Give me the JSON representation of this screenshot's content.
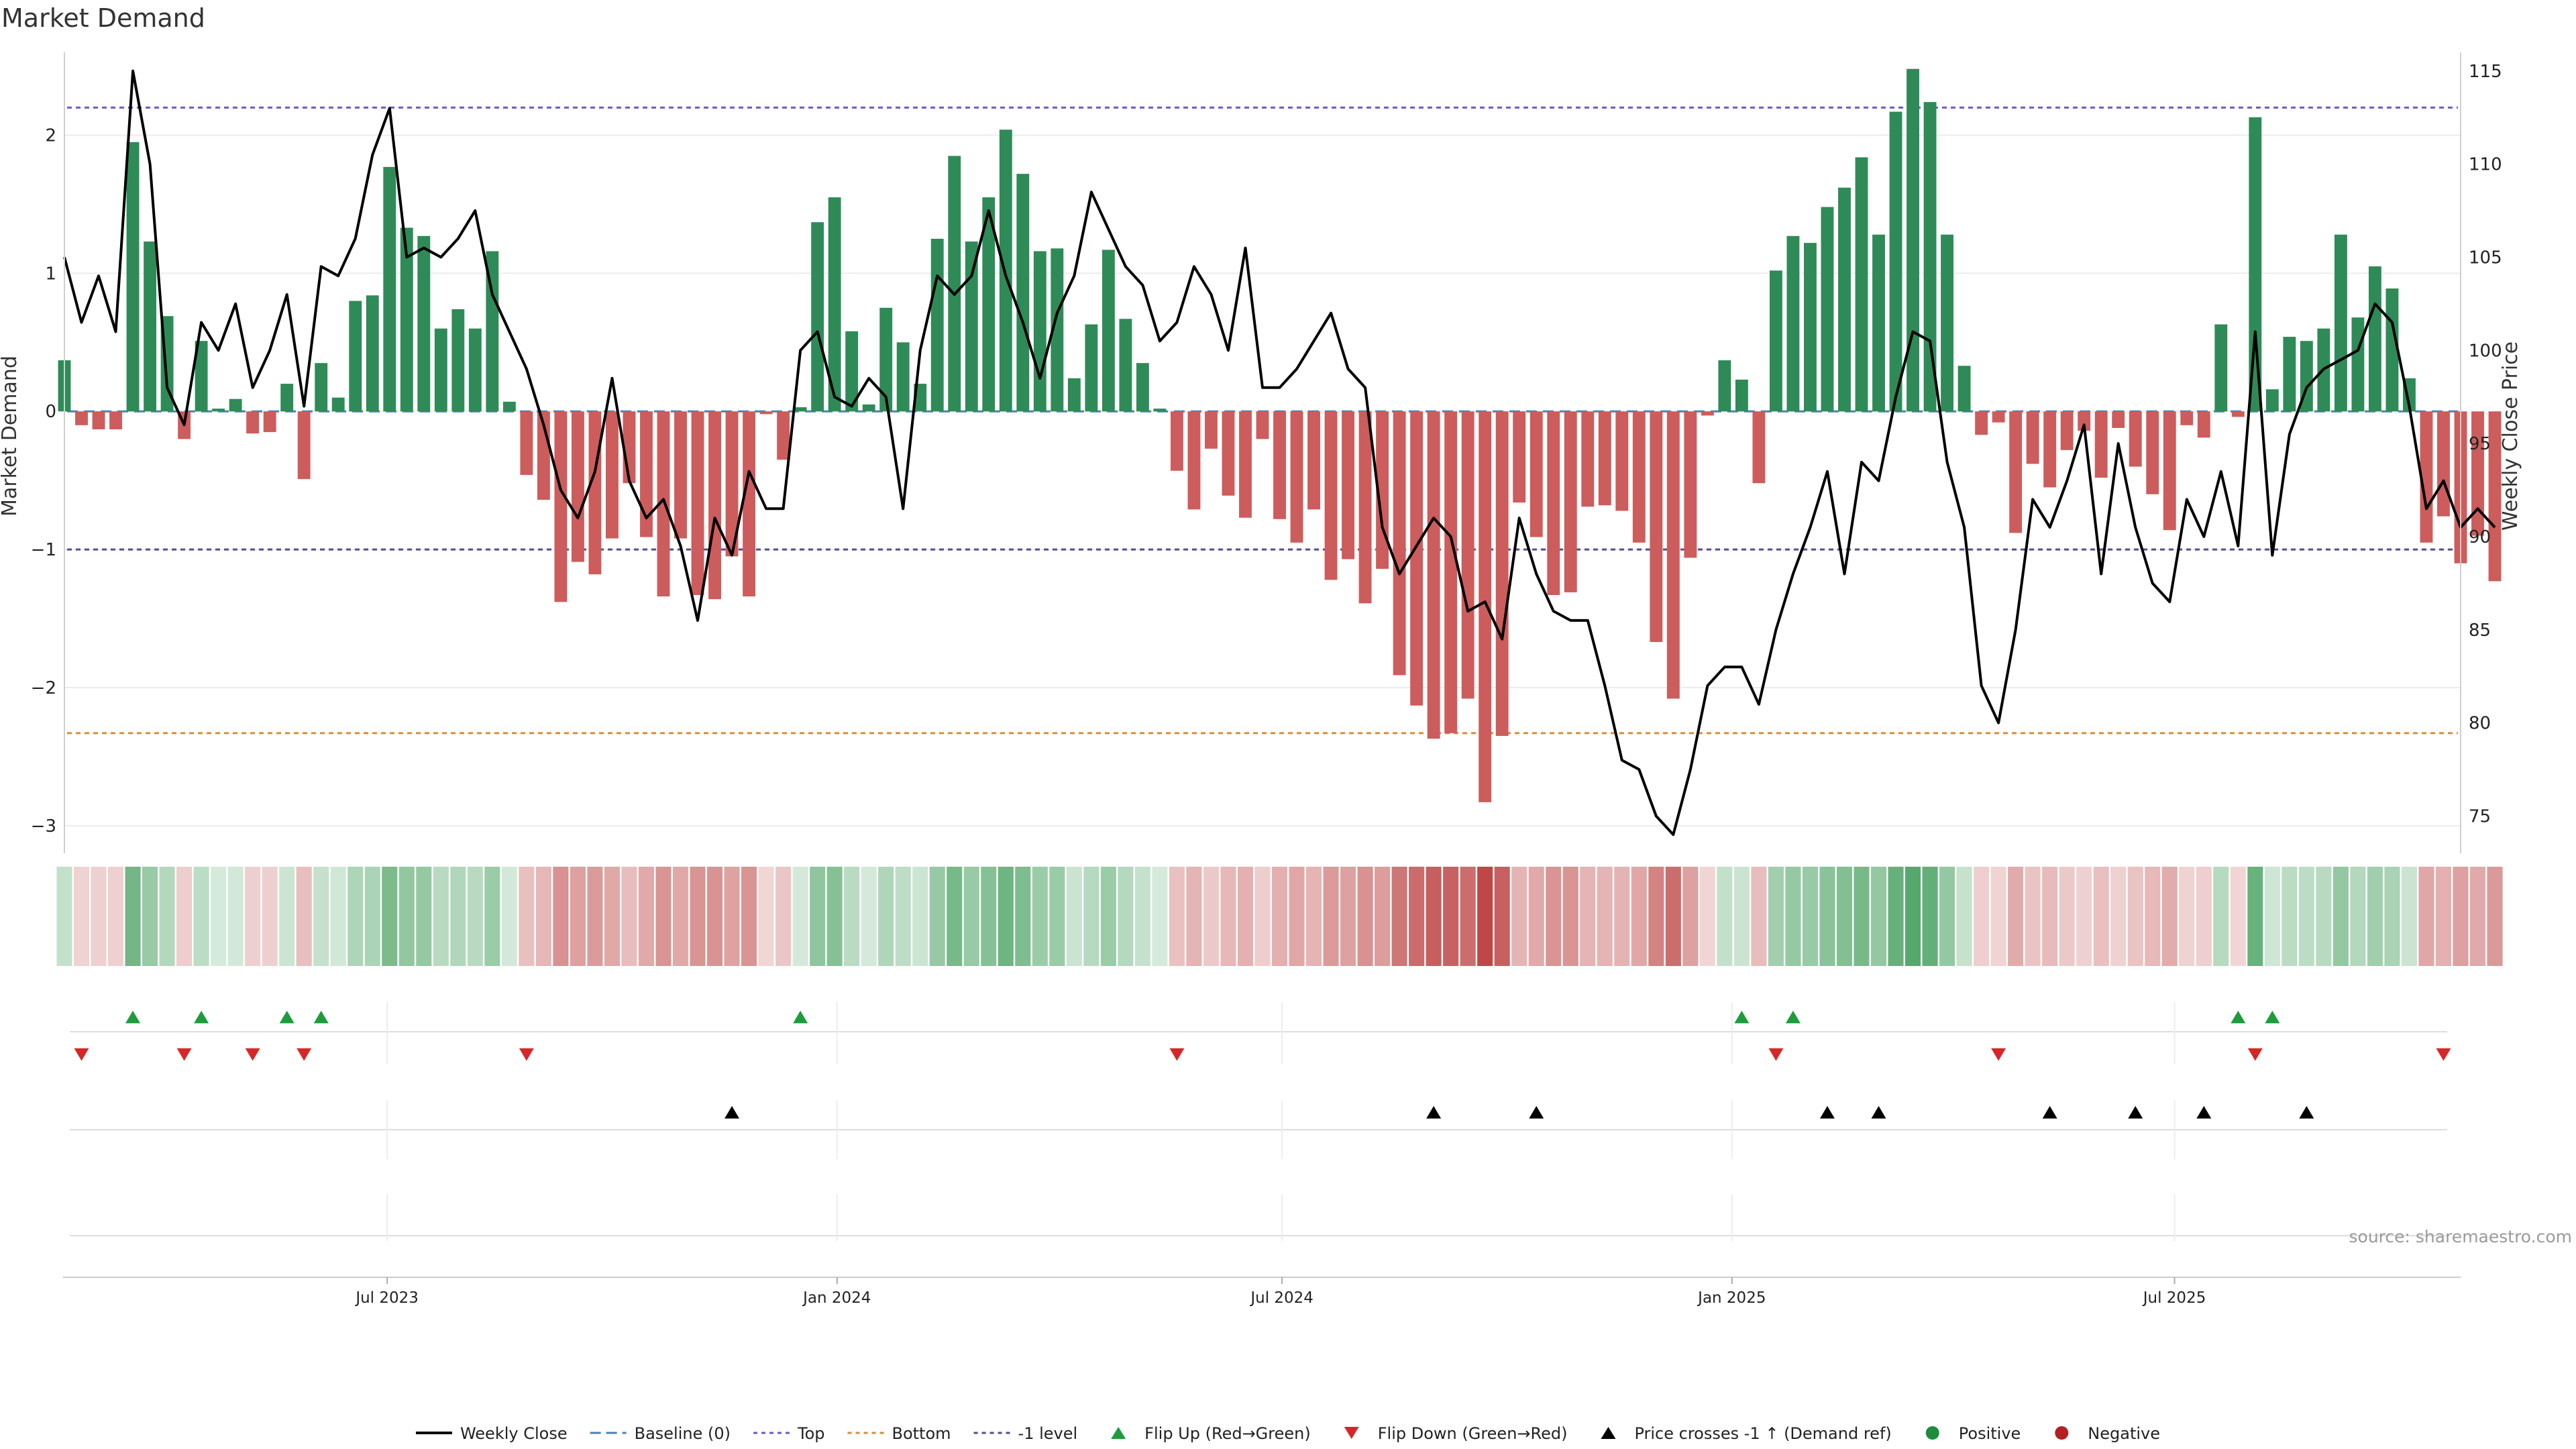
{
  "chart_data": {
    "type": "bar",
    "title": "Market Demand",
    "ylabel": "Market Demand",
    "y2label": "Weekly Close Price",
    "ylim": [
      -3.2,
      2.6
    ],
    "y2lim": [
      73,
      116
    ],
    "yticks": [
      -3,
      -2,
      -1,
      0,
      1,
      2
    ],
    "y2ticks": [
      75,
      80,
      85,
      90,
      95,
      100,
      105,
      110,
      115
    ],
    "x_start": "2023-02-19",
    "x_end": "2025-10-26",
    "xticks": [
      {
        "date": "2023-07-01",
        "label": "Jul 2023"
      },
      {
        "date": "2024-01-01",
        "label": "Jan 2024"
      },
      {
        "date": "2024-07-01",
        "label": "Jul 2024"
      },
      {
        "date": "2025-01-01",
        "label": "Jan 2025"
      },
      {
        "date": "2025-07-01",
        "label": "Jul 2025"
      }
    ],
    "reference_lines": {
      "top": 2.2,
      "bottom": -2.33,
      "minus_one": -1,
      "baseline": 0
    },
    "first_week": "2023-02-19",
    "week_step_days": 7,
    "series": [
      {
        "name": "Market Demand",
        "kind": "bar",
        "values": [
          0.37,
          -0.1,
          -0.13,
          -0.13,
          1.95,
          1.23,
          0.69,
          -0.2,
          0.51,
          0.02,
          0.09,
          -0.16,
          -0.15,
          0.2,
          -0.49,
          0.35,
          0.1,
          0.8,
          0.84,
          1.77,
          1.33,
          1.27,
          0.6,
          0.74,
          0.6,
          1.16,
          0.07,
          -0.46,
          -0.64,
          -1.38,
          -1.09,
          -1.18,
          -0.92,
          -0.52,
          -0.91,
          -1.34,
          -0.92,
          -1.33,
          -1.36,
          -1.05,
          -1.34,
          -0.02,
          -0.35,
          0.03,
          1.37,
          1.55,
          0.58,
          0.05,
          0.75,
          0.5,
          0.2,
          1.25,
          1.85,
          1.23,
          1.55,
          2.04,
          1.72,
          1.16,
          1.18,
          0.24,
          0.63,
          1.17,
          0.67,
          0.35,
          0.02,
          -0.43,
          -0.71,
          -0.27,
          -0.61,
          -0.77,
          -0.2,
          -0.78,
          -0.95,
          -0.71,
          -1.22,
          -1.07,
          -1.39,
          -1.14,
          -1.91,
          -2.13,
          -2.37,
          -2.33,
          -2.08,
          -2.83,
          -2.35,
          -0.66,
          -0.91,
          -1.33,
          -1.31,
          -0.69,
          -0.68,
          -0.72,
          -0.95,
          -1.67,
          -2.08,
          -1.06,
          -0.03,
          0.37,
          0.23,
          -0.52,
          1.02,
          1.27,
          1.22,
          1.48,
          1.62,
          1.84,
          1.28,
          2.17,
          2.48,
          2.24,
          1.28,
          0.33,
          -0.17,
          -0.08,
          -0.88,
          -0.38,
          -0.55,
          -0.28,
          -0.14,
          -0.48,
          -0.12,
          -0.4,
          -0.6,
          -0.86,
          -0.1,
          -0.19,
          0.63,
          -0.04,
          2.13,
          0.16,
          0.54,
          0.51,
          0.6,
          1.28,
          0.68,
          1.05,
          0.89,
          0.24,
          -0.95,
          -0.76,
          -1.1,
          -0.9,
          -1.23
        ]
      },
      {
        "name": "Weekly Close",
        "kind": "line",
        "color": "#000000",
        "values": [
          105,
          101.5,
          104,
          101,
          115,
          110,
          98,
          96,
          101.5,
          100,
          102.5,
          98,
          100,
          103,
          97,
          104.5,
          104,
          106,
          110.5,
          113,
          105,
          105.5,
          105,
          106,
          107.5,
          103,
          101,
          99,
          96,
          92.5,
          91,
          93.5,
          98.5,
          93,
          91,
          92,
          89.5,
          85.5,
          91,
          89,
          93.5,
          91.5,
          91.5,
          100,
          101,
          97.5,
          97,
          98.5,
          97.5,
          91.5,
          100,
          104,
          103,
          104,
          107.5,
          104,
          101.5,
          98.5,
          102,
          104,
          108.5,
          106.5,
          104.5,
          103.5,
          100.5,
          101.5,
          104.5,
          103,
          100,
          105.5,
          98,
          98,
          99,
          100.5,
          102,
          99,
          98,
          90.5,
          88,
          89.5,
          91,
          90,
          86,
          86.5,
          84.5,
          91,
          88,
          86,
          85.5,
          85.5,
          82,
          78,
          77.5,
          75,
          74,
          77.5,
          82,
          83,
          83,
          81,
          85,
          88,
          90.5,
          93.5,
          88,
          94,
          93,
          97.5,
          101,
          100.5,
          94,
          90.5,
          82,
          80,
          85,
          92,
          90.5,
          93,
          96,
          88,
          95,
          90.5,
          87.5,
          86.5,
          92,
          90,
          93.5,
          89.5,
          101,
          89,
          95.5,
          98,
          99,
          99.5,
          100,
          102.5,
          101.5,
          97,
          91.5,
          93,
          90.5,
          91.5,
          90.5
        ]
      }
    ],
    "color_strip": [
      {
        "label": "Positive",
        "color": "#1e8c3c"
      },
      {
        "label": "Negative",
        "color": "#b22222"
      }
    ],
    "event_markers": {
      "flip_up_weeks": [
        4,
        8,
        13,
        15,
        43,
        98,
        101,
        127,
        129
      ],
      "flip_down_weeks": [
        1,
        7,
        11,
        14,
        27,
        65,
        100,
        113,
        128,
        139
      ],
      "price_cross_weeks": [
        39,
        80,
        86,
        103,
        106,
        116,
        121,
        125,
        131
      ]
    },
    "colors": {
      "positive_bar": "#2e8b57",
      "negative_bar": "#cd5c5c",
      "top_line": "#6a5acd",
      "bottom_line": "#e08a2e",
      "minus_one_line": "#5a4a8a",
      "baseline_line": "#4682b4",
      "flip_up_marker": "#1e9c3c",
      "flip_down_marker": "#d62728",
      "price_cross_marker": "#000000"
    },
    "grid": true,
    "legend_position": "bottom-center",
    "legend": [
      {
        "label": "Weekly Close",
        "kind": "line",
        "color": "#000000"
      },
      {
        "label": "Baseline (0)",
        "kind": "dashed",
        "color": "#4682b4"
      },
      {
        "label": "Top",
        "kind": "dotted",
        "color": "#6a5acd"
      },
      {
        "label": "Bottom",
        "kind": "dotted",
        "color": "#e08a2e"
      },
      {
        "label": "-1 level",
        "kind": "dotted",
        "color": "#5a4a8a"
      },
      {
        "label": "Flip Up (Red→Green)",
        "kind": "tri-up",
        "color": "#1e9c3c"
      },
      {
        "label": "Flip Down (Green→Red)",
        "kind": "tri-down",
        "color": "#d62728"
      },
      {
        "label": "Price crosses -1 ↑ (Demand ref)",
        "kind": "tri-up",
        "color": "#000000"
      },
      {
        "label": "Positive",
        "kind": "dot",
        "color": "#1e8c3c"
      },
      {
        "label": "Negative",
        "kind": "dot",
        "color": "#b22222"
      }
    ],
    "source": "source: sharemaestro.com"
  }
}
